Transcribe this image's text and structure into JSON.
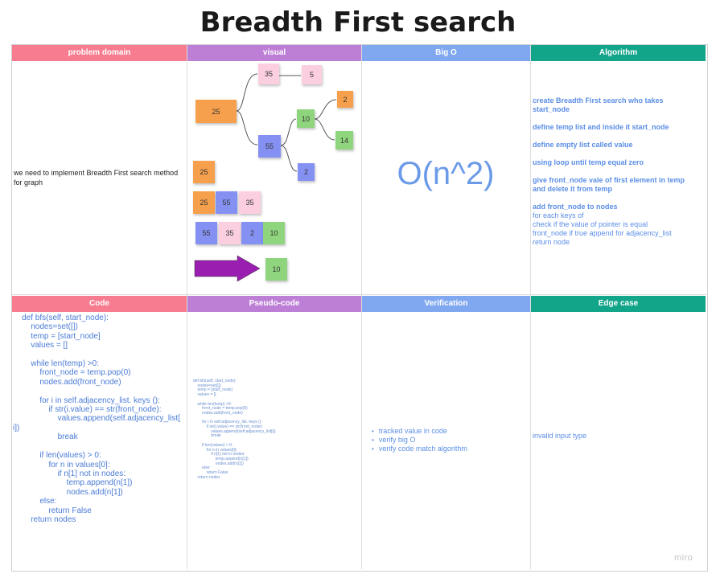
{
  "title": "Breadth First search",
  "colors": {
    "pink": "#f77c8f",
    "purple": "#bd7fd6",
    "blue": "#80a8f0",
    "teal": "#13a58a",
    "orange": "#f6a04d",
    "lightpink": "#fbcfe0",
    "green": "#8fd57d",
    "violet": "#8591f2"
  },
  "headers": {
    "problem_domain": "problem domain",
    "visual": "visual",
    "big_o": "Big O",
    "algorithm": "Algorithm",
    "code": "Code",
    "pseudo_code": "Pseudo-code",
    "verification": "Verification",
    "edge_case": "Edge case"
  },
  "problem_domain_text": "we need to implement Breadth First search method for graph",
  "visual": {
    "tree": {
      "n25": "25",
      "n35": "35",
      "n5": "5",
      "n55": "55",
      "n10": "10",
      "n2a": "2",
      "n14": "14",
      "n2b": "2"
    },
    "row1": [
      "25"
    ],
    "row2": [
      "25",
      "55",
      "35"
    ],
    "row3": [
      "55",
      "35",
      "2",
      "10"
    ],
    "result": "10"
  },
  "big_o": "O(n^2)",
  "algorithm": {
    "step1": "create Breadth First search who takes start_node",
    "step2": "define temp list and inside it start_node",
    "step3": "define empty list called value",
    "step4": "using loop until temp equal zero",
    "step5": "give front_node vale of  first element in temp and delete it from temp",
    "step6": "add  front_node to nodes",
    "step7": "for each keys of",
    "step8": "check if the value of pointer is equal",
    "step9": "front_node if true append for adjacency_list",
    "step10": "return node"
  },
  "code": "    def bfs(self, start_node):\n        nodes=set([])\n        temp = [start_node]\n        values = []\n\n        while len(temp) >0:\n            front_node = temp.pop(0)\n            nodes.add(front_node)\n\n            for i in self.adjacency_list. keys ():\n                if str(i.value) == str(front_node):\n                    values.append(self.adjacency_list[\ni])\n                    break\n\n            if len(values) > 0:\n                for n in values[0]:\n                    if n[1] not in nodes:\n                        temp.append(n[1])\n                        nodes.add(n[1])\n            else:\n                return False\n        return nodes",
  "pseudo_code": "def bfs(self, start_node):\n    nodes=set([])\n    temp = [start_node]\n    values = []\n\n    while len(temp) >0:\n        front_node = temp.pop(0)\n        nodes.add(front_node)\n\n        for i in self.adjacency_list. keys ():\n            if str(i.value) == str(front_node):\n                values.append(self.adjacency_list[i])\n                break\n\n        if len(values) > 0:\n            for n in values[0]:\n                if n[1] not in nodes:\n                    temp.append(n[1])\n                    nodes.add(n[1])\n        else:\n            return False\n    return nodes",
  "verification": [
    "tracked value in code",
    "verify big O",
    "verify code match algorithm"
  ],
  "edge_case": "invalid input type",
  "watermark": "miro"
}
